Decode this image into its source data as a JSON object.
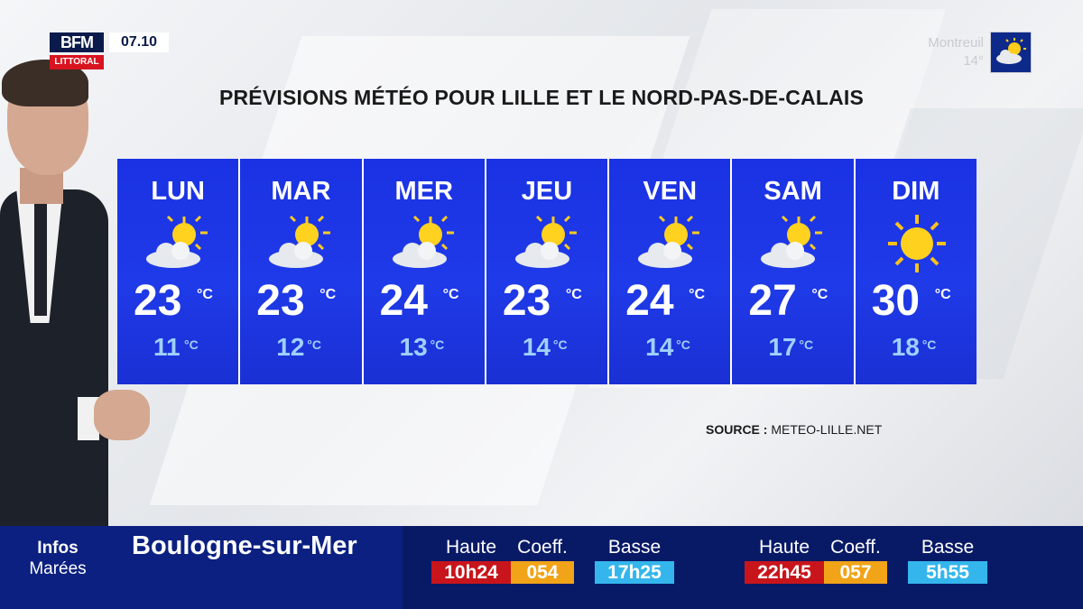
{
  "channel": {
    "logo_top": "BFM",
    "logo_bottom": "LITTORAL",
    "time": "07.10"
  },
  "local_weather": {
    "city": "Montreuil",
    "temp": "14°",
    "icon": "sun-cloud-icon"
  },
  "title": "PRÉVISIONS MÉTÉO POUR LILLE ET LE NORD-PAS-DE-CALAIS",
  "forecast": [
    {
      "day": "LUN",
      "icon": "sun-cloud-icon",
      "max": "23",
      "min": "11",
      "unit": "°C"
    },
    {
      "day": "MAR",
      "icon": "sun-cloud-icon",
      "max": "23",
      "min": "12",
      "unit": "°C"
    },
    {
      "day": "MER",
      "icon": "sun-cloud-icon",
      "max": "24",
      "min": "13",
      "unit": "°C"
    },
    {
      "day": "JEU",
      "icon": "sun-cloud-icon",
      "max": "23",
      "min": "14",
      "unit": "°C"
    },
    {
      "day": "VEN",
      "icon": "sun-cloud-icon",
      "max": "24",
      "min": "14",
      "unit": "°C"
    },
    {
      "day": "SAM",
      "icon": "sun-cloud-icon",
      "max": "27",
      "min": "17",
      "unit": "°C"
    },
    {
      "day": "DIM",
      "icon": "sun-icon",
      "max": "30",
      "min": "18",
      "unit": "°C"
    }
  ],
  "source": {
    "label": "SOURCE :",
    "value": "METEO-LILLE.NET"
  },
  "ticker": {
    "section_top": "Infos",
    "section_bottom": "Marées",
    "city": "Boulogne-sur-Mer",
    "tides": [
      {
        "label": "Haute",
        "value": "10h24",
        "kind": "high"
      },
      {
        "label": "Coeff.",
        "value": "054",
        "kind": "coeff"
      },
      {
        "label": "Basse",
        "value": "17h25",
        "kind": "low"
      },
      {
        "label": "Haute",
        "value": "22h45",
        "kind": "high"
      },
      {
        "label": "Coeff.",
        "value": "057",
        "kind": "coeff"
      },
      {
        "label": "Basse",
        "value": "5h55",
        "kind": "low"
      }
    ]
  }
}
